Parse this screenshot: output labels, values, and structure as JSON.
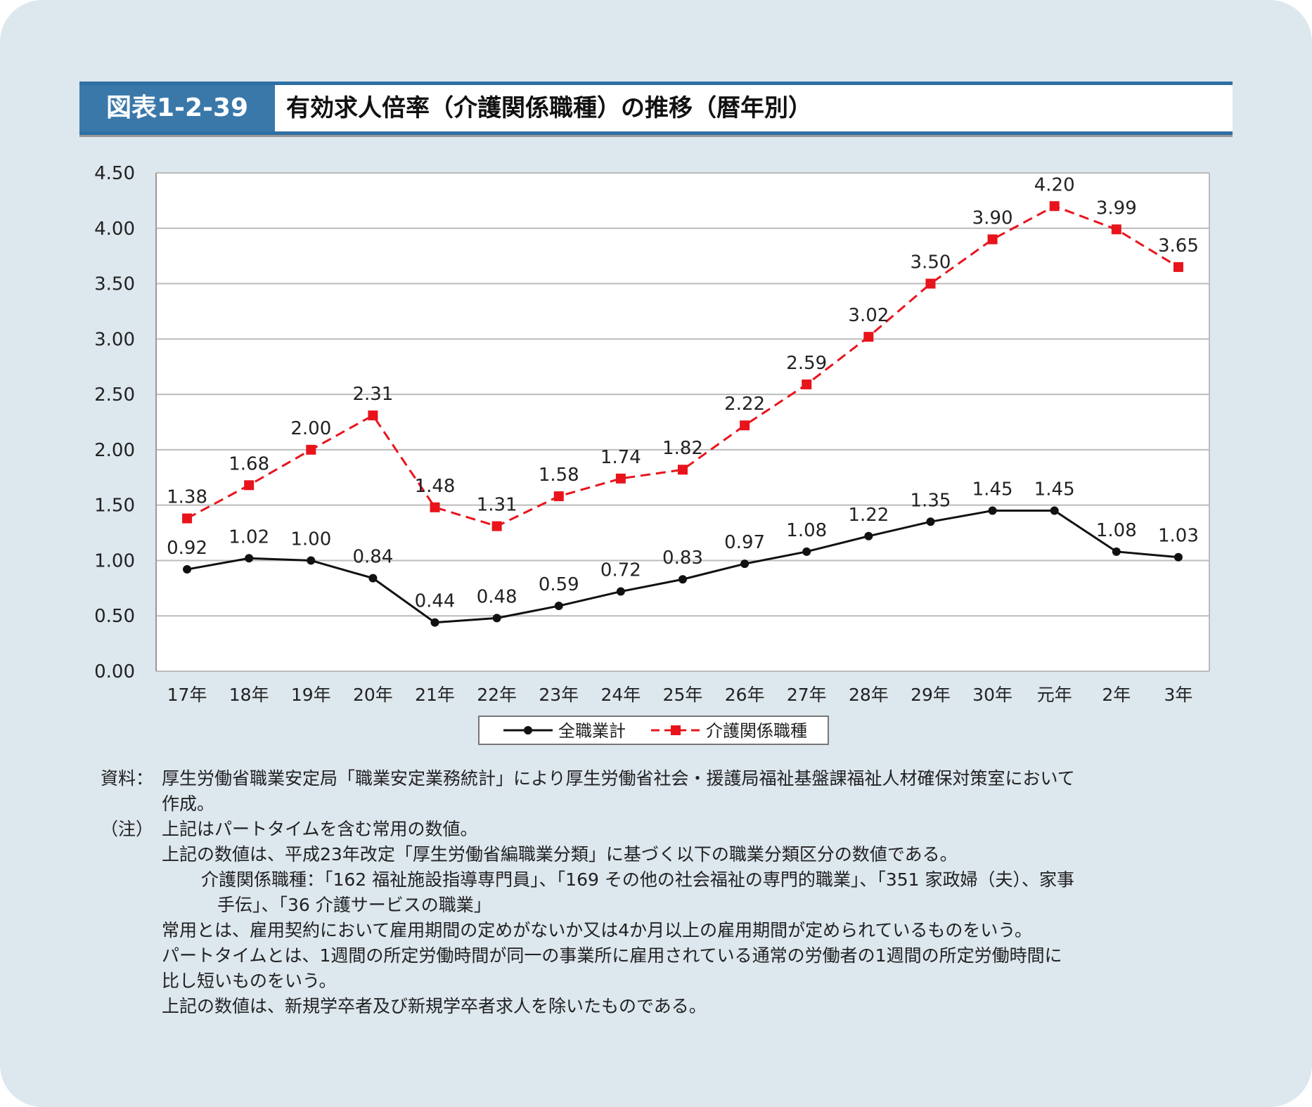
{
  "header": {
    "figure_number": "図表1-2-39",
    "title": "有効求人倍率（介護関係職種）の推移（暦年別）"
  },
  "chart_data": {
    "type": "line",
    "categories": [
      "17年",
      "18年",
      "19年",
      "20年",
      "21年",
      "22年",
      "23年",
      "24年",
      "25年",
      "26年",
      "27年",
      "28年",
      "29年",
      "30年",
      "元年",
      "2年",
      "3年"
    ],
    "ylim": [
      0,
      4.5
    ],
    "yticks": [
      "0.00",
      "0.50",
      "1.00",
      "1.50",
      "2.00",
      "2.50",
      "3.00",
      "3.50",
      "4.00",
      "4.50"
    ],
    "grid": true,
    "legend_position": "bottom",
    "series": [
      {
        "name": "全職業計",
        "color": "#111111",
        "marker": "circle",
        "line": "solid",
        "values": [
          0.92,
          1.02,
          1.0,
          0.84,
          0.44,
          0.48,
          0.59,
          0.72,
          0.83,
          0.97,
          1.08,
          1.22,
          1.35,
          1.45,
          1.45,
          1.08,
          1.03
        ]
      },
      {
        "name": "介護関係職種",
        "color": "#e8141c",
        "marker": "square",
        "line": "dashed",
        "values": [
          1.38,
          1.68,
          2.0,
          2.31,
          1.48,
          1.31,
          1.58,
          1.74,
          1.82,
          2.22,
          2.59,
          3.02,
          3.5,
          3.9,
          4.2,
          3.99,
          3.65
        ]
      }
    ]
  },
  "notes": {
    "source_label": "資料：",
    "source_lines": [
      "厚生労働省職業安定局「職業安定業務統計」により厚生労働省社会・援護局福祉基盤課福祉人材確保対策室において",
      "作成。"
    ],
    "note_label": "（注）",
    "note_lines": [
      "上記はパートタイムを含む常用の数値。",
      "上記の数値は、平成23年改定「厚生労働省編職業分類」に基づく以下の職業分類区分の数値である。"
    ],
    "sub_lines": [
      "介護関係職種：「162 福祉施設指導専門員」、「169 その他の社会福祉の専門的職業」、「351 家政婦（夫）、家事",
      "手伝」、「36 介護サービスの職業」"
    ],
    "tail_lines": [
      "常用とは、雇用契約において雇用期間の定めがないか又は4か月以上の雇用期間が定められているものをいう。",
      "パートタイムとは、1週間の所定労働時間が同一の事業所に雇用されている通常の労働者の1週間の所定労働時間に",
      "比し短いものをいう。",
      "上記の数値は、新規学卒者及び新規学卒者求人を除いたものである。"
    ]
  }
}
